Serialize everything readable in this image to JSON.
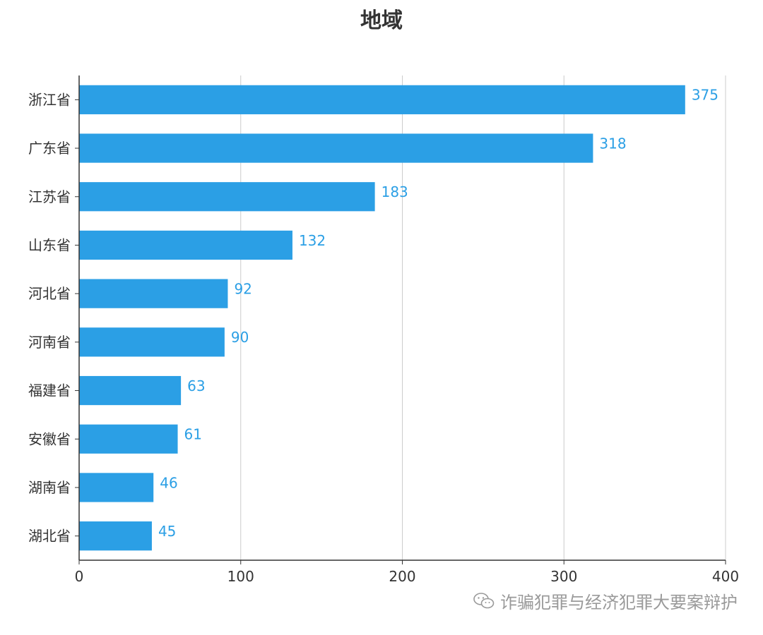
{
  "chart_data": {
    "type": "bar",
    "orientation": "horizontal",
    "title": "地域",
    "categories": [
      "浙江省",
      "广东省",
      "江苏省",
      "山东省",
      "河北省",
      "河南省",
      "福建省",
      "安徽省",
      "湖南省",
      "湖北省"
    ],
    "values": [
      375,
      318,
      183,
      132,
      92,
      90,
      63,
      61,
      46,
      45
    ],
    "xlim": [
      0,
      400
    ],
    "xticks": [
      0,
      100,
      200,
      300,
      400
    ],
    "grid": "vertical",
    "bar_color": "#2b9fe5",
    "label_color": "#2b9fe5"
  },
  "watermark": {
    "text": "诈骗犯罪与经济犯罪大要案辩护",
    "icon": "wechat-icon"
  }
}
